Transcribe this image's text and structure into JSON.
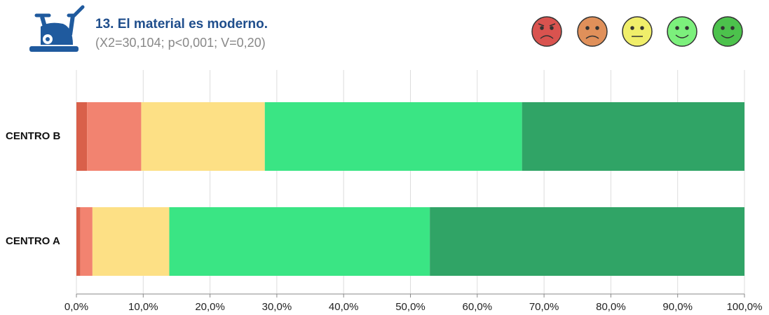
{
  "chart_data": {
    "type": "stacked_barh",
    "title": "13. El material es moderno.",
    "subtitle": "(X2=30,104; p<0,001; V=0,20)",
    "categories": [
      "CENTRO B",
      "CENTRO A"
    ],
    "series": [
      {
        "color": "#d9604a",
        "values": [
          1.6,
          0.6
        ]
      },
      {
        "color": "#f28370",
        "values": [
          8.1,
          1.8
        ]
      },
      {
        "color": "#fde085",
        "values": [
          18.5,
          11.5
        ]
      },
      {
        "color": "#3ae584",
        "values": [
          38.5,
          39.0
        ]
      },
      {
        "color": "#30a466",
        "values": [
          33.3,
          47.1
        ]
      }
    ],
    "xlim": [
      0,
      100
    ],
    "xticks": [
      {
        "value": 0,
        "label": "0,0%"
      },
      {
        "value": 10,
        "label": "10,0%"
      },
      {
        "value": 20,
        "label": "20,0%"
      },
      {
        "value": 30,
        "label": "30,0%"
      },
      {
        "value": 40,
        "label": "40,0%"
      },
      {
        "value": 50,
        "label": "50,0%"
      },
      {
        "value": 60,
        "label": "60,0%"
      },
      {
        "value": 70,
        "label": "70,0%"
      },
      {
        "value": 80,
        "label": "80,0%"
      },
      {
        "value": 90,
        "label": "90,0%"
      },
      {
        "value": 100,
        "label": "100,0%"
      }
    ],
    "grid": true
  }
}
